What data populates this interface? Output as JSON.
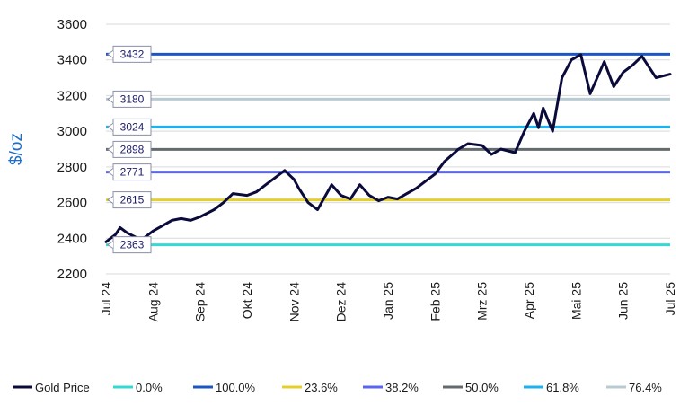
{
  "chart_data": {
    "type": "line",
    "ylabel": "$/oz",
    "ylim": [
      2200,
      3600
    ],
    "yticks": [
      "2200",
      "2400",
      "2600",
      "2800",
      "3000",
      "3200",
      "3400",
      "3600"
    ],
    "xticks": [
      "Jul 24",
      "Aug 24",
      "Sep 24",
      "Okt 24",
      "Nov 24",
      "Dez 24",
      "Jan 25",
      "Feb 25",
      "Mrz 25",
      "Apr 25",
      "Mai 25",
      "Jun 25",
      "Jul 25"
    ],
    "grid": "horizontal",
    "legend_position": "bottom",
    "series": [
      {
        "name": "Gold Price",
        "color": "#0b0b3b",
        "x": [
          0,
          0.1,
          0.2,
          0.3,
          0.45,
          0.6,
          0.75,
          0.9,
          1.0,
          1.2,
          1.4,
          1.6,
          1.8,
          2.0,
          2.3,
          2.5,
          2.7,
          3.0,
          3.2,
          3.4,
          3.6,
          3.8,
          4.0,
          4.1,
          4.3,
          4.5,
          4.8,
          5.0,
          5.2,
          5.4,
          5.6,
          5.8,
          6.0,
          6.2,
          6.4,
          6.6,
          6.8,
          7.0,
          7.2,
          7.5,
          7.7,
          8.0,
          8.2,
          8.4,
          8.7,
          8.9,
          9.0,
          9.1,
          9.2,
          9.3,
          9.5,
          9.7,
          9.9,
          10.1,
          10.3,
          10.6,
          10.8,
          11.0,
          11.2,
          11.4,
          11.7,
          12.0
        ],
        "values": [
          2380,
          2400,
          2420,
          2460,
          2430,
          2410,
          2390,
          2420,
          2440,
          2470,
          2500,
          2510,
          2500,
          2520,
          2560,
          2600,
          2650,
          2640,
          2660,
          2700,
          2740,
          2780,
          2730,
          2680,
          2600,
          2560,
          2700,
          2640,
          2620,
          2700,
          2640,
          2610,
          2630,
          2620,
          2650,
          2680,
          2720,
          2760,
          2830,
          2900,
          2930,
          2920,
          2870,
          2900,
          2880,
          3000,
          3050,
          3100,
          3020,
          3130,
          3000,
          3300,
          3400,
          3430,
          3210,
          3390,
          3250,
          3330,
          3370,
          3420,
          3300,
          3320
        ]
      }
    ],
    "levels": [
      {
        "name": "0.0%",
        "value": 2363,
        "label": "2363",
        "color": "#35d9d4"
      },
      {
        "name": "100.0%",
        "value": 3432,
        "label": "3432",
        "color": "#1d56c4"
      },
      {
        "name": "23.6%",
        "value": 2615,
        "label": "2615",
        "color": "#e4d02c"
      },
      {
        "name": "38.2%",
        "value": 2771,
        "label": "2771",
        "color": "#5a66ef"
      },
      {
        "name": "50.0%",
        "value": 2898,
        "label": "2898",
        "color": "#646b6e"
      },
      {
        "name": "61.8%",
        "value": 3024,
        "label": "3024",
        "color": "#1fb1ec"
      },
      {
        "name": "76.4%",
        "value": 3180,
        "label": "3180",
        "color": "#b9cbd2"
      }
    ]
  }
}
